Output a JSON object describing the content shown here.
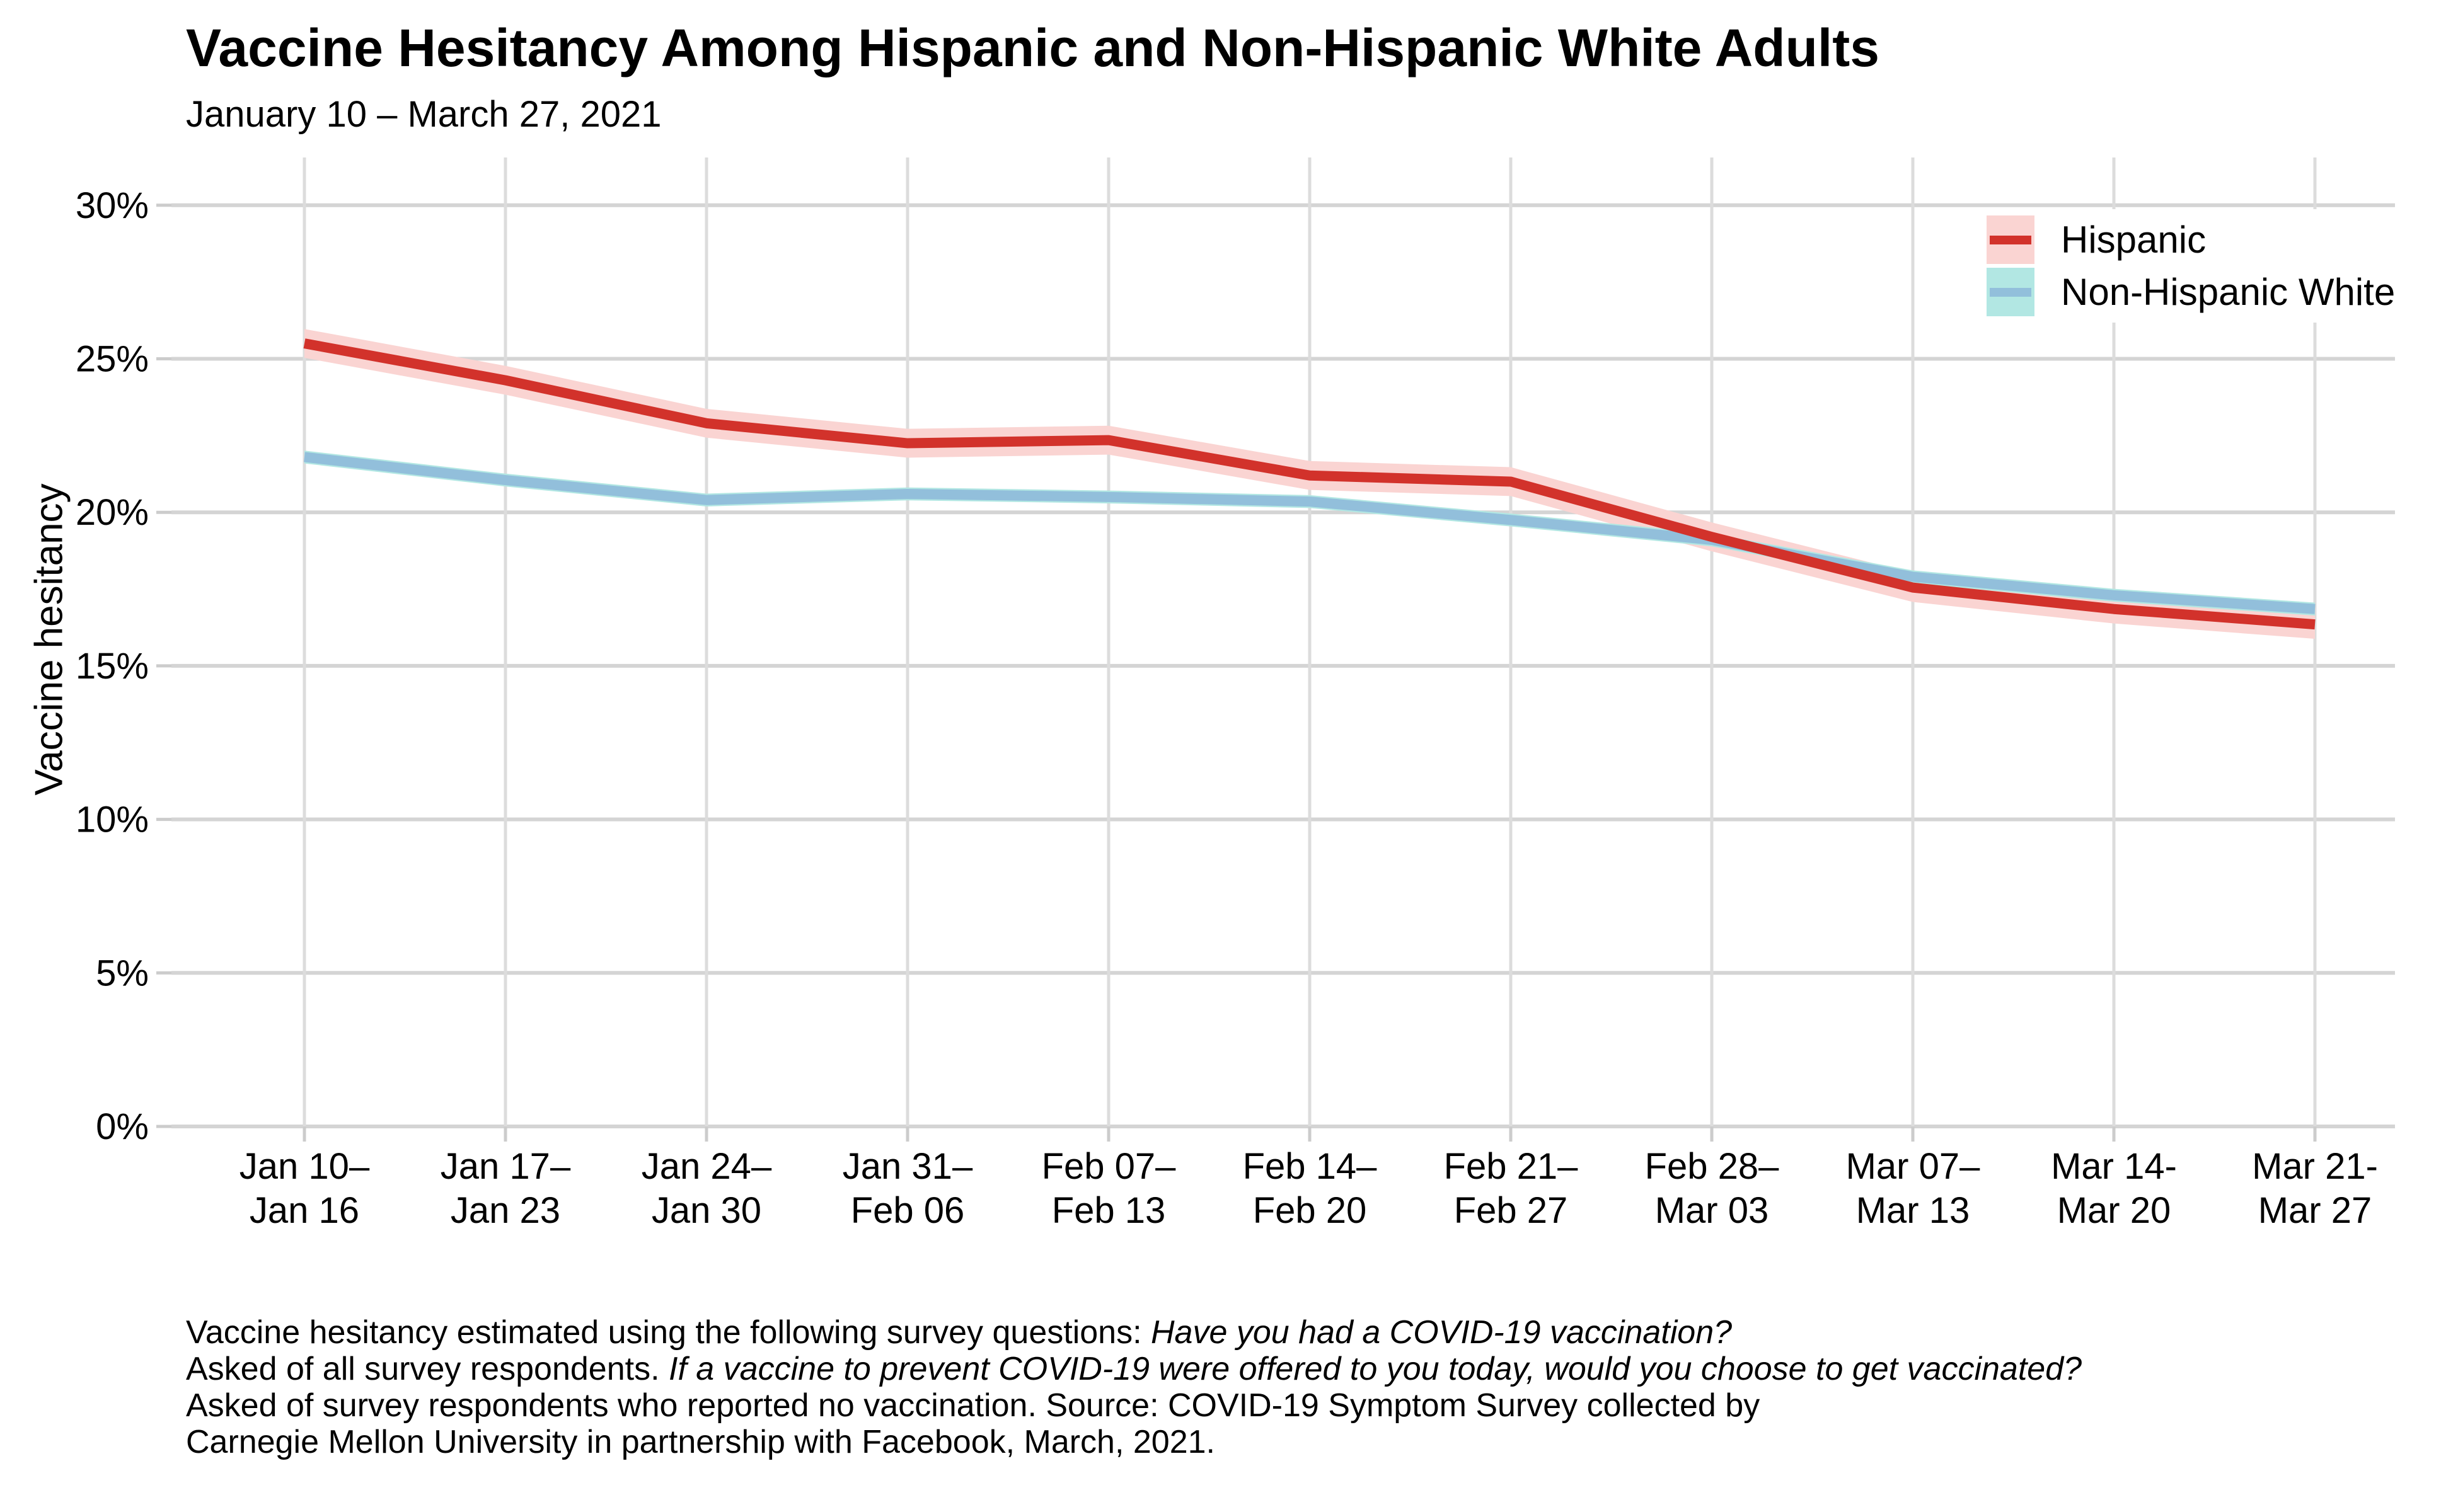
{
  "header": {
    "title": "Vaccine Hesitancy Among Hispanic and Non-Hispanic White Adults",
    "subtitle": "January 10 – March 27, 2021"
  },
  "axis": {
    "y_title": "Vaccine hesitancy"
  },
  "chart_data": {
    "type": "line",
    "title": "Vaccine Hesitancy Among Hispanic and Non-Hispanic White Adults",
    "subtitle": "January 10 – March 27, 2021",
    "xlabel": "",
    "ylabel": "Vaccine hesitancy",
    "ylim": [
      0,
      31.5
    ],
    "grid": true,
    "legend_position": "top-right-inside",
    "background_color": "#ffffff",
    "h_grid_color": "#d4d4d4",
    "v_grid_color": "#dcdcdc",
    "tick_color": "#cccccc",
    "text_color": "#000000",
    "y_ticks": [
      {
        "value": 0,
        "label": "0%"
      },
      {
        "value": 5,
        "label": "5%"
      },
      {
        "value": 10,
        "label": "10%"
      },
      {
        "value": 15,
        "label": "15%"
      },
      {
        "value": 20,
        "label": "20%"
      },
      {
        "value": 25,
        "label": "25%"
      },
      {
        "value": 30,
        "label": "30%"
      }
    ],
    "categories": [
      [
        "Jan 10–",
        "Jan 16"
      ],
      [
        "Jan 17–",
        "Jan 23"
      ],
      [
        "Jan 24–",
        "Jan 30"
      ],
      [
        "Jan 31–",
        "Feb 06"
      ],
      [
        "Feb 07–",
        "Feb 13"
      ],
      [
        "Feb 14–",
        "Feb 20"
      ],
      [
        "Feb 21–",
        "Feb 27"
      ],
      [
        "Feb 28–",
        "Mar 03"
      ],
      [
        "Mar 07–",
        "Mar 13"
      ],
      [
        "Mar 14-",
        "Mar 20"
      ],
      [
        "Mar 21-",
        "Mar 27"
      ]
    ],
    "series": [
      {
        "name": "Hispanic",
        "values": [
          25.5,
          24.3,
          22.9,
          22.25,
          22.35,
          21.2,
          21.0,
          19.2,
          17.55,
          16.85,
          16.35
        ],
        "ci_half_width": 0.47,
        "line_color": "#d2322b",
        "band_color": "#fad4d2"
      },
      {
        "name": "Non-Hispanic White",
        "values": [
          21.8,
          21.05,
          20.4,
          20.6,
          20.5,
          20.35,
          19.75,
          19.1,
          17.9,
          17.3,
          16.85
        ],
        "ci_half_width": 0.21,
        "line_color": "#92bfdb",
        "band_color": "#b2e7e3"
      }
    ]
  },
  "legend": {
    "items": [
      {
        "label": "Hispanic"
      },
      {
        "label": "Non-Hispanic White"
      }
    ]
  },
  "caption": {
    "lines": [
      [
        {
          "text": "Vaccine hesitancy estimated using the following survey questions: ",
          "italic": false
        },
        {
          "text": "Have you had a COVID-19 vaccination?",
          "italic": true
        }
      ],
      [
        {
          "text": "Asked of all survey respondents. ",
          "italic": false
        },
        {
          "text": "If a vaccine to prevent COVID-19 were offered to you today, would you choose to get vaccinated?",
          "italic": true
        }
      ],
      [
        {
          "text": "Asked of survey respondents who reported no vaccination. Source: COVID-19 Symptom Survey collected by",
          "italic": false
        }
      ],
      [
        {
          "text": "Carnegie Mellon University in partnership with Facebook, March, 2021.",
          "italic": false
        }
      ]
    ]
  }
}
